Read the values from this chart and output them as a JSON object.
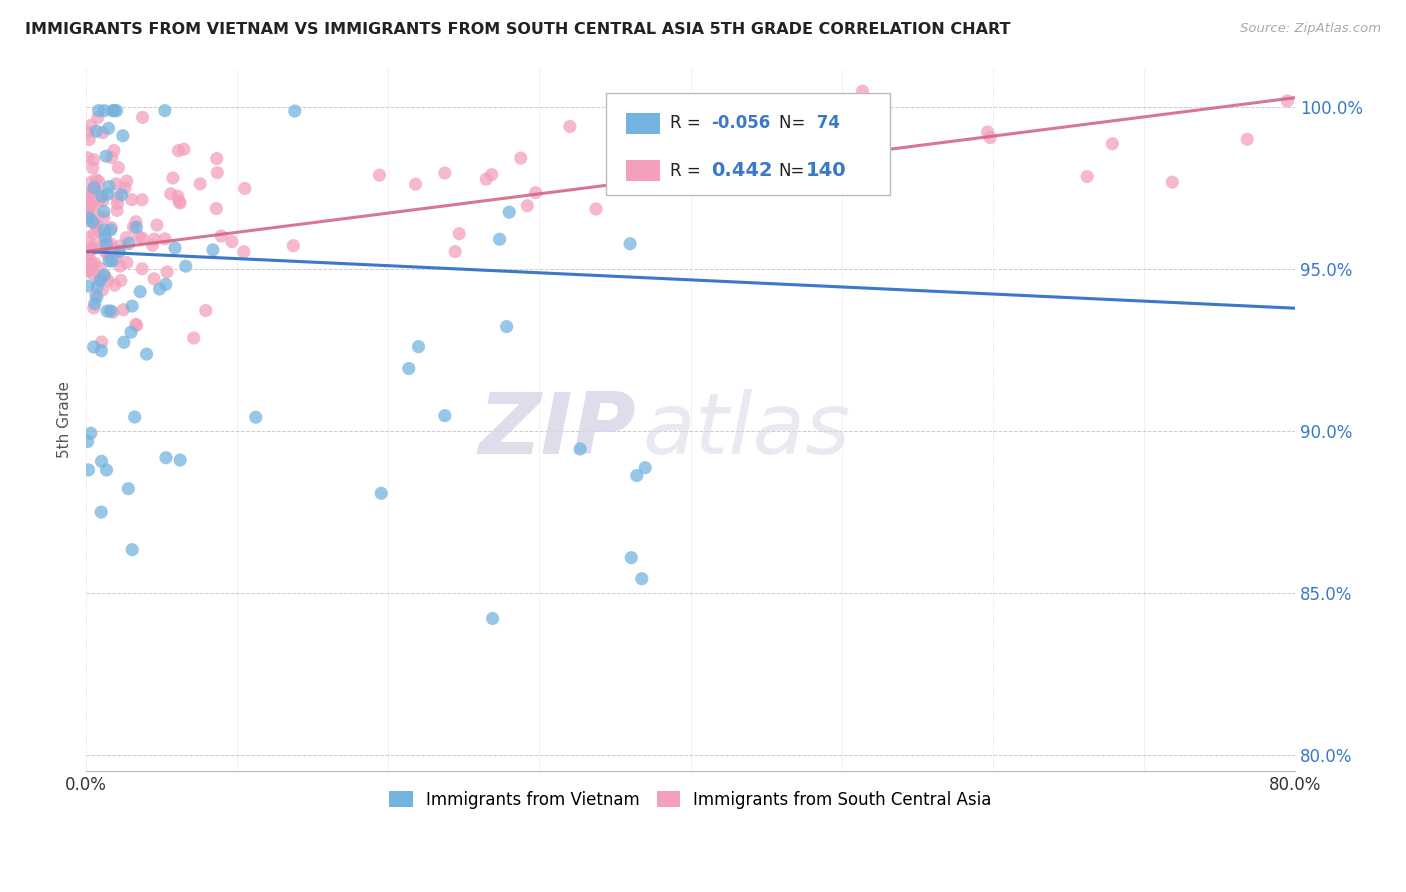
{
  "title": "IMMIGRANTS FROM VIETNAM VS IMMIGRANTS FROM SOUTH CENTRAL ASIA 5TH GRADE CORRELATION CHART",
  "source": "Source: ZipAtlas.com",
  "ylabel": "5th Grade",
  "xlim": [
    0.0,
    0.8
  ],
  "ylim": [
    0.795,
    1.012
  ],
  "yticks": [
    0.8,
    0.85,
    0.9,
    0.95,
    1.0
  ],
  "ytick_labels": [
    "80.0%",
    "85.0%",
    "90.0%",
    "95.0%",
    "100.0%"
  ],
  "xtick_vals": [
    0.0,
    0.1,
    0.2,
    0.3,
    0.4,
    0.5,
    0.6,
    0.7,
    0.8
  ],
  "xtick_labels": [
    "0.0%",
    "",
    "",
    "",
    "",
    "",
    "",
    "",
    "80.0%"
  ],
  "blue_R": -0.056,
  "blue_N": 74,
  "pink_R": 0.442,
  "pink_N": 140,
  "blue_color": "#74b3e0",
  "pink_color": "#f4a0bc",
  "blue_line_color": "#3a78c9",
  "pink_line_color": "#d06080",
  "watermark_zip": "ZIP",
  "watermark_atlas": "atlas",
  "legend_label_blue": "Immigrants from Vietnam",
  "legend_label_pink": "Immigrants from South Central Asia",
  "blue_line_x0": 0.0,
  "blue_line_y0": 0.9555,
  "blue_line_x1": 0.8,
  "blue_line_y1": 0.938,
  "pink_line_x0": 0.0,
  "pink_line_y0": 0.9555,
  "pink_line_x1": 0.8,
  "pink_line_y1": 1.003
}
